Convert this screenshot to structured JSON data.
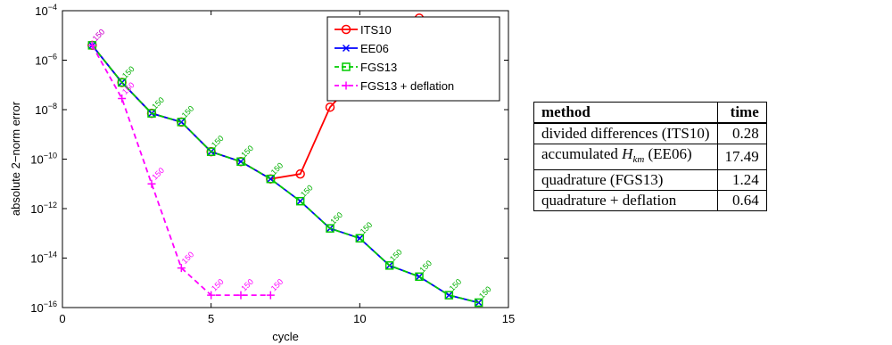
{
  "chart_data": {
    "type": "line",
    "xlabel": "cycle",
    "ylabel": "absolute 2−norm error",
    "xlim": [
      0,
      15
    ],
    "ylim_exponent": [
      -16,
      -4
    ],
    "y_scale": "log",
    "xticks": [
      0,
      5,
      10,
      15
    ],
    "yticks_exponent": [
      -16,
      -14,
      -12,
      -10,
      -8,
      -6,
      -4
    ],
    "legend_position": "top-right",
    "point_label": "150",
    "series": [
      {
        "name": "ITS10",
        "color": "#ff0000",
        "marker": "circle",
        "dash": "solid",
        "x": [
          1,
          2,
          3,
          4,
          5,
          6,
          7,
          8,
          9,
          10,
          11,
          12
        ],
        "log10_y": [
          -5.4,
          -6.9,
          -8.15,
          -8.5,
          -9.7,
          -10.1,
          -10.8,
          -10.6,
          -7.9,
          -6.6,
          -5.0,
          -4.3
        ]
      },
      {
        "name": "EE06",
        "color": "#0000ff",
        "marker": "x",
        "dash": "solid",
        "x": [
          1,
          2,
          3,
          4,
          5,
          6,
          7,
          8,
          9,
          10,
          11,
          12,
          13,
          14
        ],
        "log10_y": [
          -5.4,
          -6.9,
          -8.15,
          -8.5,
          -9.7,
          -10.1,
          -10.8,
          -11.7,
          -12.8,
          -13.2,
          -14.3,
          -14.75,
          -15.5,
          -15.8
        ]
      },
      {
        "name": "FGS13",
        "color": "#00cc00",
        "marker": "square",
        "dash": "dashed",
        "x": [
          1,
          2,
          3,
          4,
          5,
          6,
          7,
          8,
          9,
          10,
          11,
          12,
          13,
          14
        ],
        "log10_y": [
          -5.4,
          -6.9,
          -8.15,
          -8.5,
          -9.7,
          -10.1,
          -10.8,
          -11.7,
          -12.8,
          -13.2,
          -14.3,
          -14.75,
          -15.5,
          -15.8
        ]
      },
      {
        "name": "FGS13 + deflation",
        "color": "#ff00ff",
        "marker": "plus",
        "dash": "dashed",
        "x": [
          1,
          2,
          3,
          4,
          5,
          6,
          7
        ],
        "log10_y": [
          -5.4,
          -7.55,
          -11.0,
          -14.4,
          -15.5,
          -15.5,
          -15.5
        ]
      }
    ]
  },
  "table": {
    "headers": [
      "method",
      "time"
    ],
    "rows": [
      {
        "method": "divided differences (ITS10)",
        "time": "0.28"
      },
      {
        "method_pre": "accumulated ",
        "method_sym": "H",
        "method_sub": "km",
        "method_post": " (EE06)",
        "time": "17.49"
      },
      {
        "method": "quadrature (FGS13)",
        "time": "1.24"
      },
      {
        "method": "quadrature + deflation",
        "time": "0.64"
      }
    ]
  }
}
